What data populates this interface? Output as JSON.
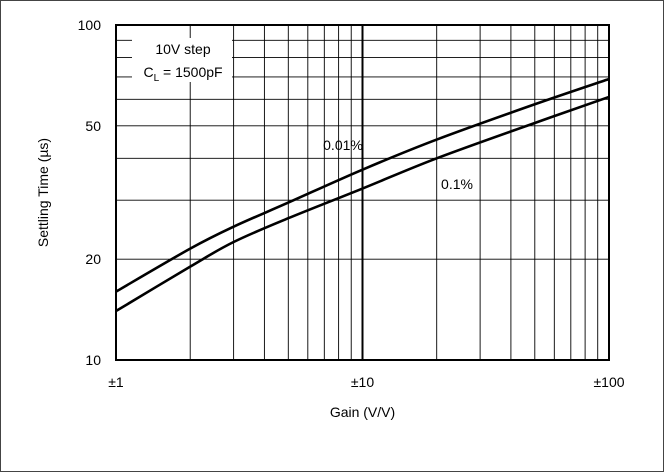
{
  "chart_data": {
    "type": "line",
    "title": "",
    "xlabel": "Gain (V/V)",
    "ylabel": "Settling Time (µs)",
    "xscale": "log",
    "yscale": "log",
    "xlim": [
      1,
      100
    ],
    "ylim": [
      10,
      100
    ],
    "grid": true,
    "x_ticks": [
      {
        "value": 1,
        "label": "±1"
      },
      {
        "value": 10,
        "label": "±10"
      },
      {
        "value": 100,
        "label": "±100"
      }
    ],
    "y_ticks": [
      {
        "value": 10,
        "label": "10"
      },
      {
        "value": 20,
        "label": "20"
      },
      {
        "value": 50,
        "label": "50"
      },
      {
        "value": 100,
        "label": "100"
      }
    ],
    "conditions": {
      "line1": "10V step",
      "line2_main": "C",
      "line2_sub": "L",
      "line2_rest": " = 1500pF"
    },
    "series": [
      {
        "name": "0.01%",
        "x": [
          1,
          2,
          3,
          5,
          10,
          20,
          50,
          100
        ],
        "y": [
          16,
          21.5,
          25,
          29.5,
          37,
          45.5,
          58,
          69
        ]
      },
      {
        "name": "0.1%",
        "x": [
          1,
          2,
          3,
          5,
          10,
          20,
          50,
          100
        ],
        "y": [
          14,
          19,
          22.5,
          26.5,
          32.5,
          40,
          51,
          61
        ]
      }
    ]
  }
}
